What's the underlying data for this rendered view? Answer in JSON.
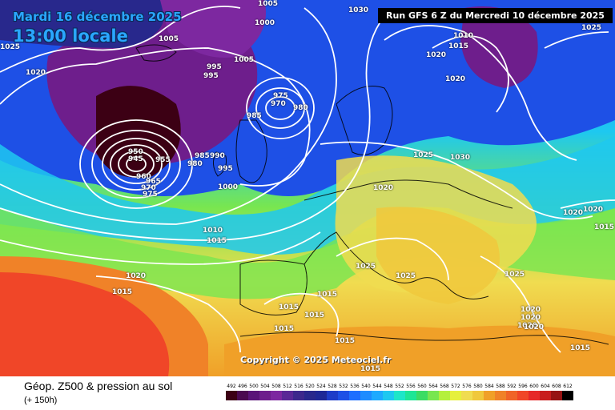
{
  "header": {
    "date": "Mardi 16 décembre 2025",
    "time": "13:00 locale",
    "run": "Run GFS 6 Z du Mercredi 10 décembre 2025"
  },
  "footer": {
    "product": "Géop. Z500 & pression au sol",
    "lead": "(+ 150h)",
    "copyright": "Copyright © 2025 Meteociel.fr"
  },
  "legend": {
    "values": [
      "492",
      "496",
      "500",
      "504",
      "508",
      "512",
      "516",
      "520",
      "524",
      "528",
      "532",
      "536",
      "540",
      "544",
      "548",
      "552",
      "556",
      "560",
      "564",
      "568",
      "572",
      "576",
      "580",
      "584",
      "588",
      "592",
      "596",
      "600",
      "604",
      "608",
      "612"
    ],
    "colors": [
      "#3c0014",
      "#4b0a50",
      "#5a1478",
      "#6e1e8c",
      "#7d28a0",
      "#5a2896",
      "#3c288c",
      "#28288c",
      "#1e2896",
      "#1e3cc8",
      "#1e50e6",
      "#1e6eff",
      "#1e8cff",
      "#1eaaff",
      "#1ec8f0",
      "#1ee6c8",
      "#1ee696",
      "#3cdc64",
      "#78e650",
      "#b4f03c",
      "#e6f03c",
      "#f0dc50",
      "#f0c83c",
      "#f0a028",
      "#f08228",
      "#f06428",
      "#f04628",
      "#e62828",
      "#c81e1e",
      "#961414",
      "#000000"
    ]
  },
  "isobars": [
    "1025",
    "1020",
    "1005",
    "1005",
    "995",
    "995",
    "1030",
    "1010",
    "1015",
    "1020",
    "1020",
    "1025",
    "975",
    "970",
    "980",
    "985",
    "950",
    "945",
    "955",
    "960",
    "965",
    "970",
    "975",
    "985",
    "990",
    "980",
    "995",
    "1000",
    "1025",
    "1030",
    "1020",
    "1020",
    "1020",
    "1015",
    "1015",
    "1010",
    "1015",
    "1020",
    "1025",
    "1025",
    "1025",
    "1015",
    "1015",
    "1015",
    "1015",
    "1015",
    "1020",
    "1020",
    "1020",
    "1020",
    "1015",
    "1015",
    "1005",
    "1000"
  ]
}
